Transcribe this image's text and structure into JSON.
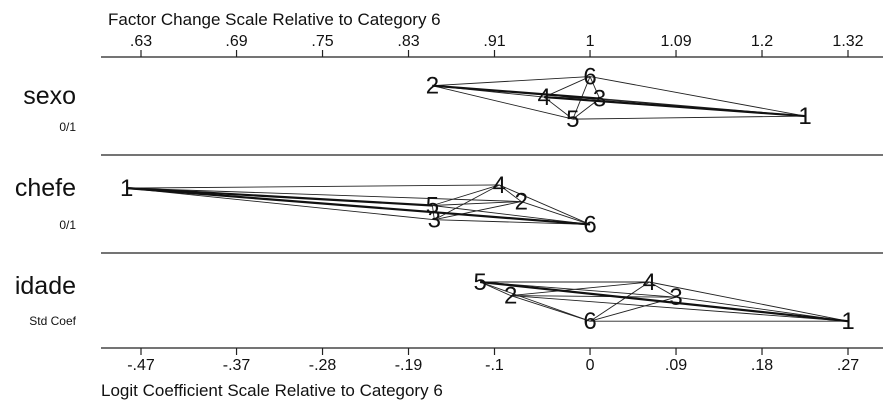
{
  "chart_data": {
    "type": "scatter",
    "title": "",
    "top_axis": {
      "label": "Factor Change Scale Relative to Category 6",
      "ticks": [
        ".63",
        ".69",
        ".75",
        ".83",
        ".91",
        "1",
        "1.09",
        "1.2",
        "1.32"
      ]
    },
    "bottom_axis": {
      "label": "Logit Coefficient Scale Relative to Category 6",
      "tick_values": [
        -0.47,
        -0.37,
        -0.28,
        -0.19,
        -0.1,
        0,
        0.09,
        0.18,
        0.27
      ],
      "ticks": [
        "-.47",
        "-.37",
        "-.28",
        "-.19",
        "-.1",
        "0",
        ".09",
        ".18",
        ".27"
      ]
    },
    "xlim": [
      -0.5,
      0.28
    ],
    "reference_category": "6",
    "panels": [
      {
        "name": "sexo",
        "subtitle": "0/1",
        "points": [
          {
            "label": "1",
            "x": 0.225,
            "level": 0.58
          },
          {
            "label": "2",
            "x": -0.165,
            "level": 0.18
          },
          {
            "label": "3",
            "x": 0.01,
            "level": 0.35
          },
          {
            "label": "4",
            "x": -0.048,
            "level": 0.33
          },
          {
            "label": "5",
            "x": -0.018,
            "level": 0.62
          },
          {
            "label": "6",
            "x": 0.0,
            "level": 0.06
          }
        ],
        "bold_edges": [
          [
            "2",
            "3"
          ],
          [
            "4",
            "1"
          ]
        ]
      },
      {
        "name": "chefe",
        "subtitle": "0/1",
        "points": [
          {
            "label": "1",
            "x": -0.485,
            "level": 0.28
          },
          {
            "label": "2",
            "x": -0.072,
            "level": 0.45
          },
          {
            "label": "3",
            "x": -0.163,
            "level": 0.68
          },
          {
            "label": "4",
            "x": -0.095,
            "level": 0.24
          },
          {
            "label": "5",
            "x": -0.165,
            "level": 0.5
          },
          {
            "label": "6",
            "x": 0.0,
            "level": 0.74
          }
        ],
        "bold_edges": [
          [
            "1",
            "5"
          ],
          [
            "1",
            "6"
          ]
        ]
      },
      {
        "name": "idade",
        "subtitle": "Std Coef",
        "points": [
          {
            "label": "1",
            "x": 0.27,
            "level": 0.74
          },
          {
            "label": "2",
            "x": -0.083,
            "level": 0.42
          },
          {
            "label": "3",
            "x": 0.09,
            "level": 0.44
          },
          {
            "label": "4",
            "x": 0.062,
            "level": 0.25
          },
          {
            "label": "5",
            "x": -0.115,
            "level": 0.25
          },
          {
            "label": "6",
            "x": 0.0,
            "level": 0.74
          }
        ],
        "bold_edges": [
          [
            "5",
            "1"
          ]
        ]
      }
    ]
  }
}
